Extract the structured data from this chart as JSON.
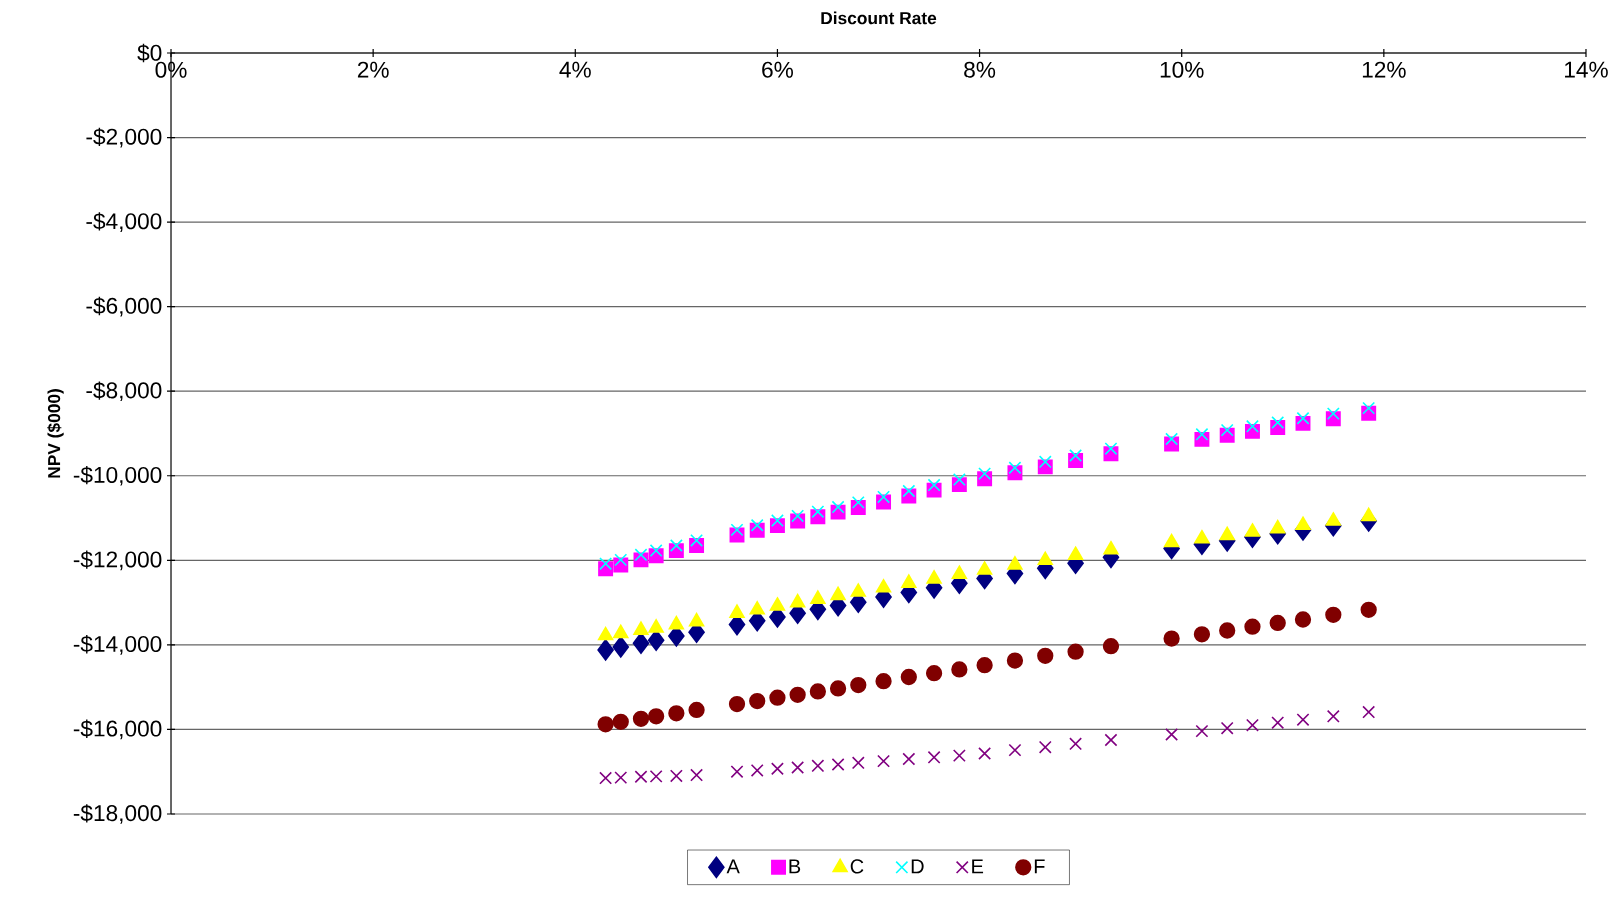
{
  "chart_data": {
    "type": "scatter",
    "xlabel": "Discount Rate",
    "ylabel": "NPV ($000)",
    "x": [
      4.3,
      4.45,
      4.65,
      4.8,
      5.0,
      5.2,
      5.6,
      5.8,
      6.0,
      6.2,
      6.4,
      6.6,
      6.8,
      7.05,
      7.3,
      7.55,
      7.8,
      8.05,
      8.35,
      8.65,
      8.95,
      9.3,
      9.9,
      10.2,
      10.45,
      10.7,
      10.95,
      11.2,
      11.5,
      11.85
    ],
    "series": [
      {
        "name": "A",
        "color": "#000080",
        "marker": "diamond",
        "values": [
          -14120,
          -14050,
          -13960,
          -13890,
          -13790,
          -13700,
          -13520,
          -13430,
          -13340,
          -13250,
          -13160,
          -13070,
          -12990,
          -12870,
          -12760,
          -12650,
          -12540,
          -12430,
          -12310,
          -12190,
          -12070,
          -11930,
          -11720,
          -11620,
          -11540,
          -11450,
          -11370,
          -11280,
          -11180,
          -11070
        ]
      },
      {
        "name": "B",
        "color": "#ff00ff",
        "marker": "square",
        "values": [
          -12200,
          -12110,
          -11990,
          -11890,
          -11770,
          -11650,
          -11400,
          -11290,
          -11180,
          -11070,
          -10970,
          -10860,
          -10750,
          -10620,
          -10480,
          -10340,
          -10210,
          -10070,
          -9930,
          -9790,
          -9640,
          -9480,
          -9250,
          -9140,
          -9040,
          -8950,
          -8860,
          -8760,
          -8650,
          -8520
        ]
      },
      {
        "name": "C",
        "color": "#ffff00",
        "marker": "triangle",
        "values": [
          -13780,
          -13730,
          -13650,
          -13600,
          -13520,
          -13450,
          -13250,
          -13170,
          -13080,
          -13000,
          -12920,
          -12830,
          -12750,
          -12650,
          -12540,
          -12440,
          -12330,
          -12230,
          -12110,
          -12000,
          -11880,
          -11750,
          -11580,
          -11490,
          -11410,
          -11330,
          -11250,
          -11170,
          -11070,
          -10960
        ]
      },
      {
        "name": "D",
        "color": "#00ffff",
        "marker": "cross",
        "values": [
          -12080,
          -11990,
          -11870,
          -11770,
          -11650,
          -11530,
          -11280,
          -11170,
          -11060,
          -10950,
          -10850,
          -10740,
          -10630,
          -10500,
          -10360,
          -10220,
          -10090,
          -9950,
          -9810,
          -9670,
          -9520,
          -9360,
          -9130,
          -9020,
          -8920,
          -8830,
          -8740,
          -8640,
          -8530,
          -8400
        ]
      },
      {
        "name": "E",
        "color": "#800080",
        "marker": "cross",
        "values": [
          -17150,
          -17140,
          -17120,
          -17110,
          -17100,
          -17080,
          -17000,
          -16970,
          -16930,
          -16900,
          -16860,
          -16830,
          -16790,
          -16750,
          -16700,
          -16660,
          -16620,
          -16570,
          -16490,
          -16420,
          -16340,
          -16250,
          -16120,
          -16040,
          -15970,
          -15900,
          -15840,
          -15770,
          -15690,
          -15590
        ]
      },
      {
        "name": "F",
        "color": "#800000",
        "marker": "circle",
        "values": [
          -15880,
          -15820,
          -15750,
          -15690,
          -15620,
          -15540,
          -15400,
          -15330,
          -15250,
          -15180,
          -15100,
          -15030,
          -14950,
          -14860,
          -14760,
          -14670,
          -14580,
          -14480,
          -14370,
          -14260,
          -14160,
          -14030,
          -13850,
          -13750,
          -13660,
          -13570,
          -13480,
          -13400,
          -13290,
          -13170
        ]
      }
    ],
    "xlim": [
      0,
      14
    ],
    "xticks": [
      {
        "value": 0,
        "label": "0%"
      },
      {
        "value": 2,
        "label": "2%"
      },
      {
        "value": 4,
        "label": "4%"
      },
      {
        "value": 6,
        "label": "6%"
      },
      {
        "value": 8,
        "label": "8%"
      },
      {
        "value": 10,
        "label": "10%"
      },
      {
        "value": 12,
        "label": "12%"
      },
      {
        "value": 14,
        "label": "14%"
      }
    ],
    "ylim": [
      -18000,
      0
    ],
    "yticks": [
      {
        "value": 0,
        "label": "$0"
      },
      {
        "value": -2000,
        "label": "-$2,000"
      },
      {
        "value": -4000,
        "label": "-$4,000"
      },
      {
        "value": -6000,
        "label": "-$6,000"
      },
      {
        "value": -8000,
        "label": "-$8,000"
      },
      {
        "value": -10000,
        "label": "-$10,000"
      },
      {
        "value": -12000,
        "label": "-$12,000"
      },
      {
        "value": -14000,
        "label": "-$14,000"
      },
      {
        "value": -16000,
        "label": "-$16,000"
      },
      {
        "value": -18000,
        "label": "-$18,000"
      }
    ],
    "grid": "y",
    "legend": "bottom"
  }
}
